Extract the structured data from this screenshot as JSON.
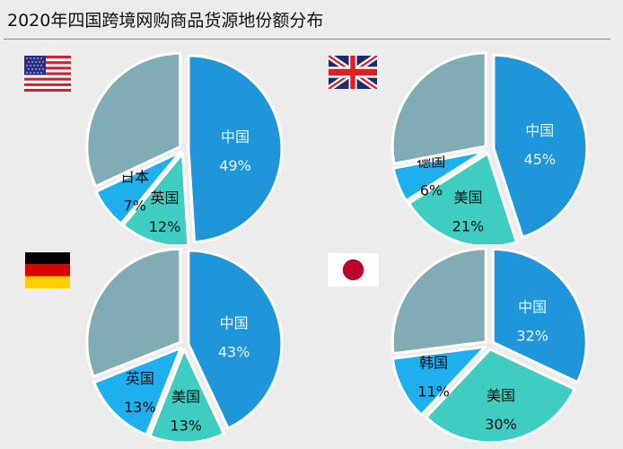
{
  "title": "2020年四国跨境网购商品货源地份额分布",
  "colors": {
    "china": "#1e96d9",
    "second": "#3ecdc0",
    "third": "#1eb0ee",
    "other": "#7facb5",
    "stroke": "#ffffff",
    "label_light": "#e6f4fb",
    "label_dark": "#111111"
  },
  "chart_data": [
    {
      "type": "pie",
      "country": "美国",
      "flag": "us-flag",
      "slices": [
        {
          "label": "中国",
          "value": 49,
          "text": "49%"
        },
        {
          "label": "英国",
          "value": 12,
          "text": "12%"
        },
        {
          "label": "日本",
          "value": 7,
          "text": "7%"
        },
        {
          "label": "",
          "value": 32,
          "text": ""
        }
      ]
    },
    {
      "type": "pie",
      "country": "英国",
      "flag": "uk-flag",
      "slices": [
        {
          "label": "中国",
          "value": 45,
          "text": "45%"
        },
        {
          "label": "美国",
          "value": 21,
          "text": "21%"
        },
        {
          "label": "德国",
          "value": 6,
          "text": "6%"
        },
        {
          "label": "",
          "value": 28,
          "text": ""
        }
      ]
    },
    {
      "type": "pie",
      "country": "德国",
      "flag": "germany-flag",
      "slices": [
        {
          "label": "中国",
          "value": 43,
          "text": "43%"
        },
        {
          "label": "美国",
          "value": 13,
          "text": "13%"
        },
        {
          "label": "英国",
          "value": 13,
          "text": "13%"
        },
        {
          "label": "",
          "value": 31,
          "text": ""
        }
      ]
    },
    {
      "type": "pie",
      "country": "日本",
      "flag": "japan-flag",
      "slices": [
        {
          "label": "中国",
          "value": 32,
          "text": "32%"
        },
        {
          "label": "美国",
          "value": 30,
          "text": "30%"
        },
        {
          "label": "韩国",
          "value": 11,
          "text": "11%"
        },
        {
          "label": "",
          "value": 27,
          "text": ""
        }
      ]
    }
  ]
}
